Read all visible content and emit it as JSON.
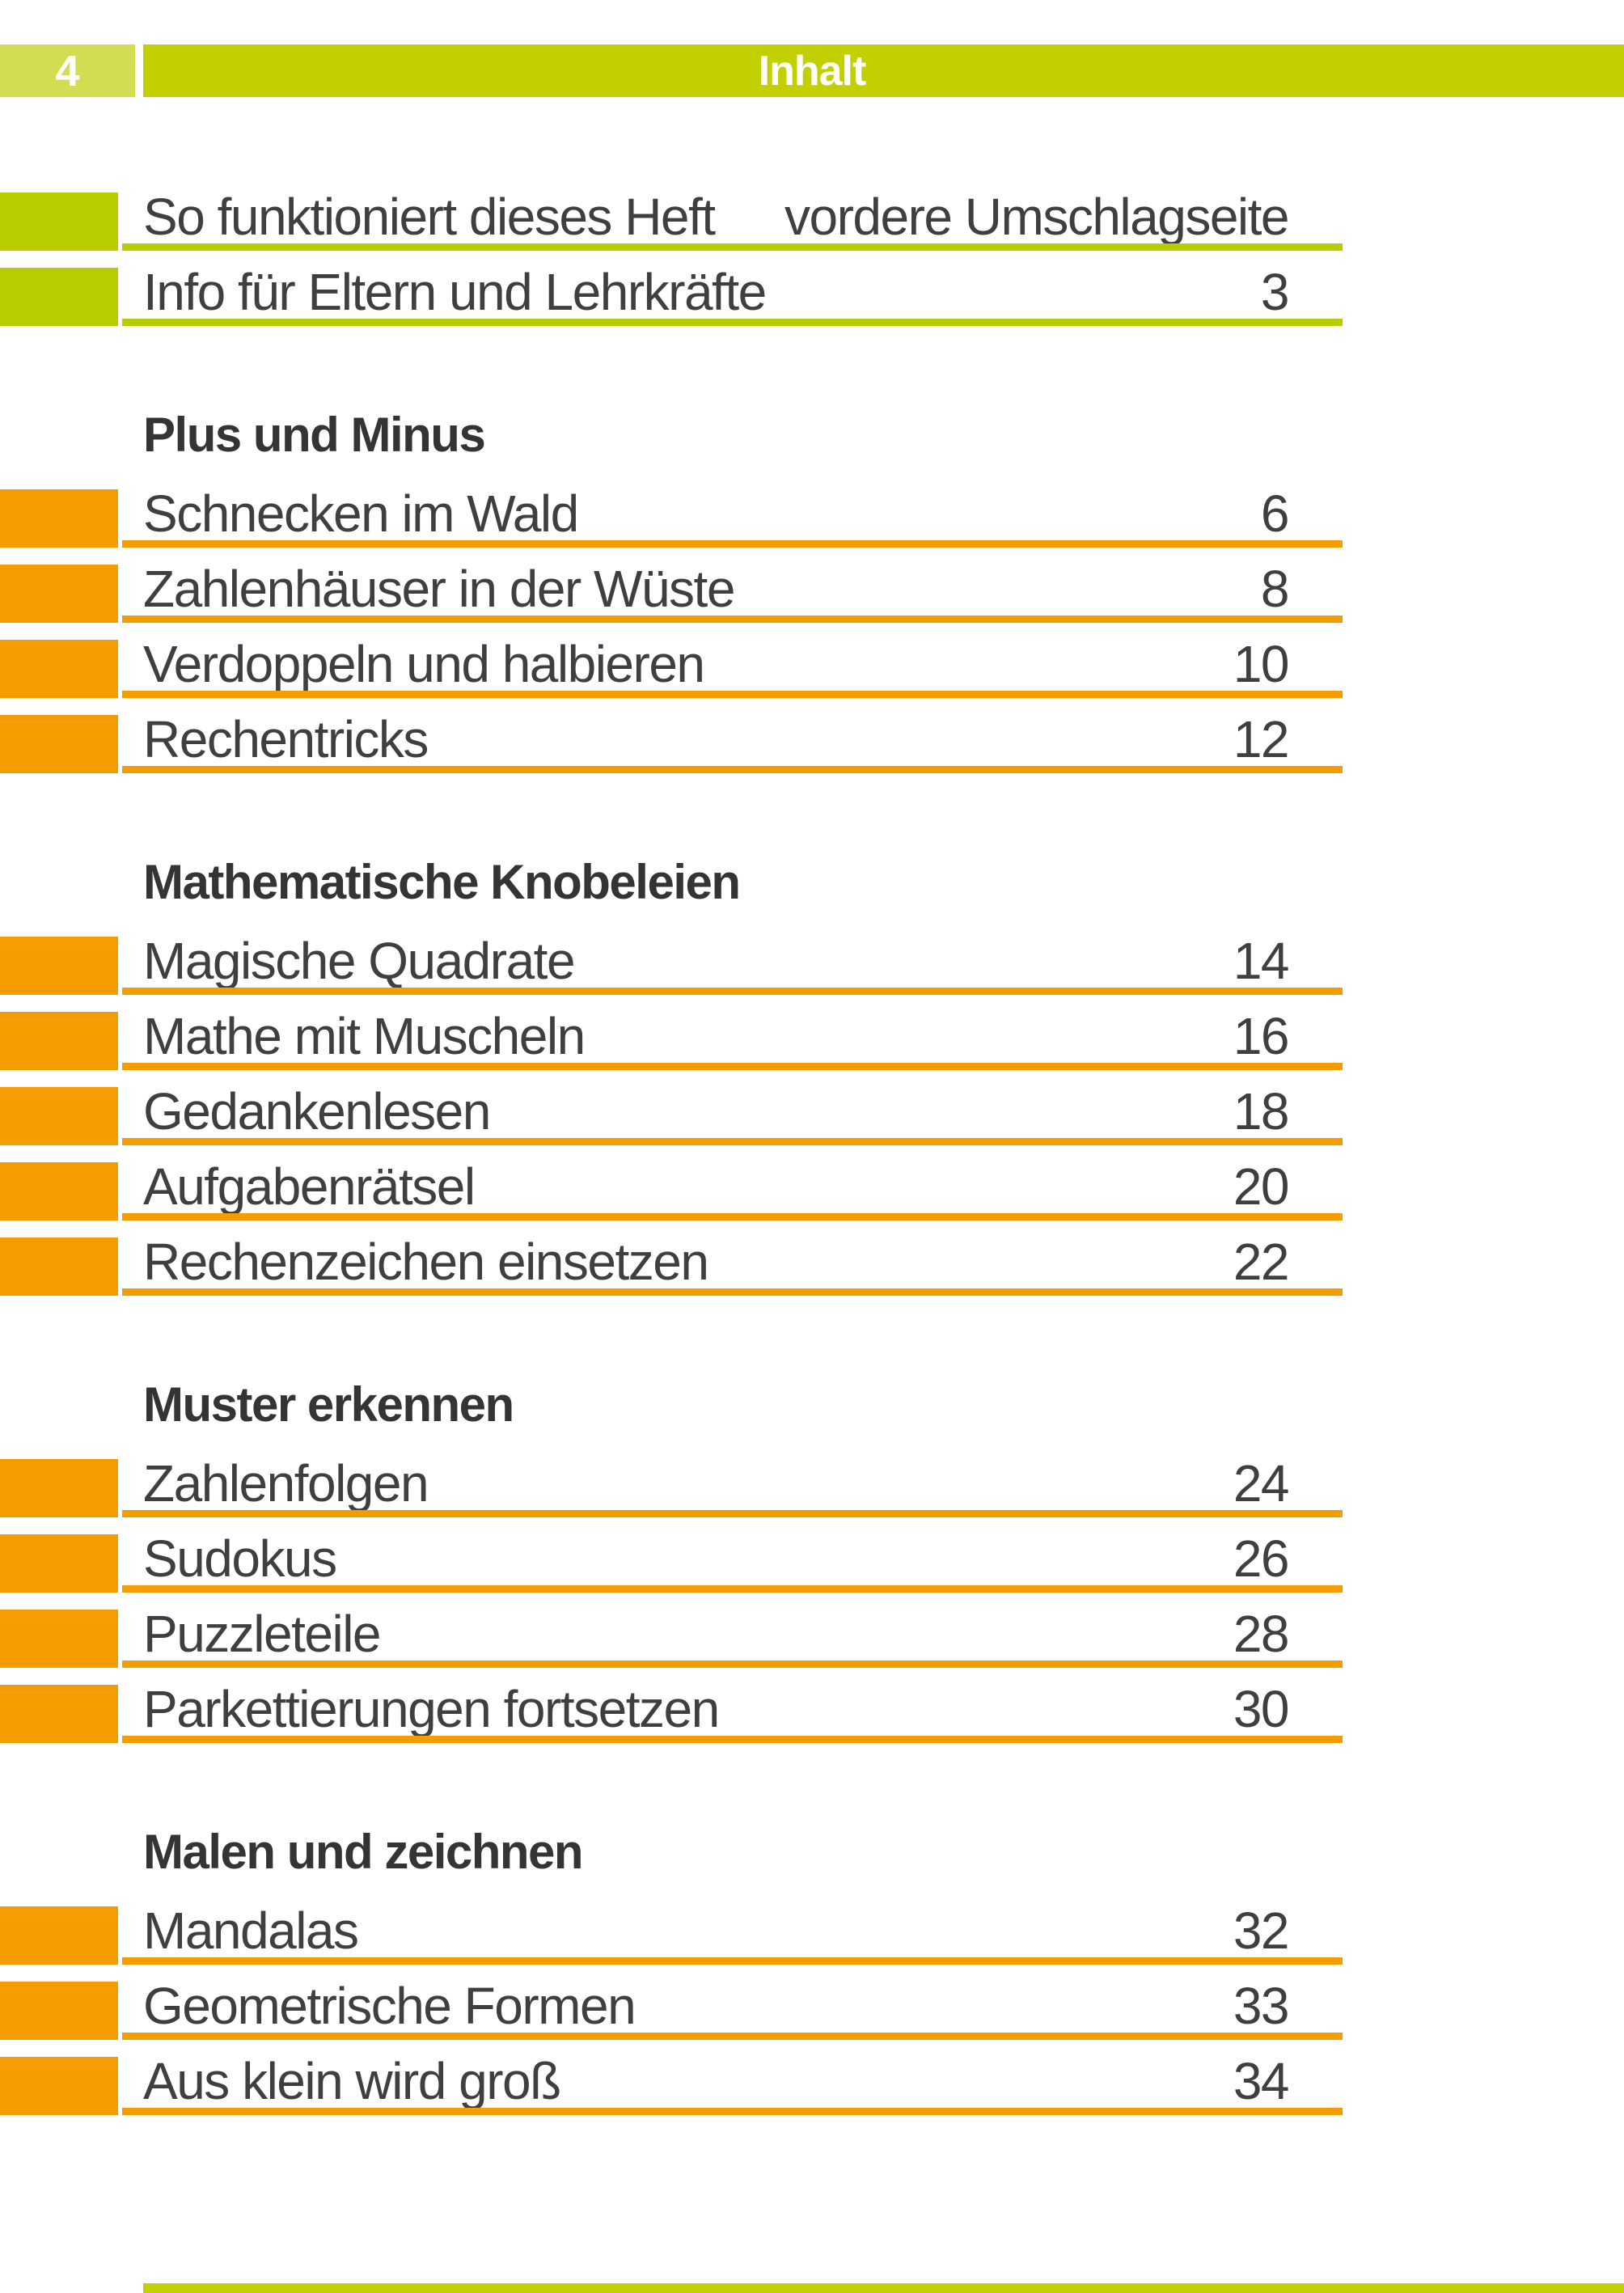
{
  "page": {
    "number": "4",
    "header_title": "Inhalt"
  },
  "colors": {
    "header_bar_green": "#c2d000",
    "page_number_box_green": "#d4dd52",
    "intro_accent_green": "#b8cc00",
    "entry_accent_orange": "#f59c00",
    "body_text": "#3f3f3f",
    "heading_text": "#343434",
    "header_text": "#ffffff"
  },
  "toc": {
    "intro_rows": [
      {
        "title": "So funktioniert dieses Heft",
        "page_ref": "vordere Umschlagseite"
      },
      {
        "title": "Info für Eltern und Lehrkräfte",
        "page_ref": "3"
      }
    ],
    "sections": [
      {
        "heading": "Plus und Minus",
        "rows": [
          {
            "title": "Schnecken im Wald",
            "page_ref": "6"
          },
          {
            "title": "Zahlenhäuser in der Wüste",
            "page_ref": "8"
          },
          {
            "title": "Verdoppeln und halbieren",
            "page_ref": "10"
          },
          {
            "title": "Rechentricks",
            "page_ref": "12"
          }
        ]
      },
      {
        "heading": "Mathematische Knobeleien",
        "rows": [
          {
            "title": "Magische Quadrate",
            "page_ref": "14"
          },
          {
            "title": "Mathe mit Muscheln",
            "page_ref": "16"
          },
          {
            "title": "Gedankenlesen",
            "page_ref": "18"
          },
          {
            "title": "Aufgabenrätsel",
            "page_ref": "20"
          },
          {
            "title": "Rechenzeichen einsetzen",
            "page_ref": "22"
          }
        ]
      },
      {
        "heading": "Muster erkennen",
        "rows": [
          {
            "title": "Zahlenfolgen",
            "page_ref": "24"
          },
          {
            "title": "Sudokus",
            "page_ref": "26"
          },
          {
            "title": "Puzzleteile",
            "page_ref": "28"
          },
          {
            "title": "Parkettierungen fortsetzen",
            "page_ref": "30"
          }
        ]
      },
      {
        "heading": "Malen und zeichnen",
        "rows": [
          {
            "title": "Mandalas",
            "page_ref": "32"
          },
          {
            "title": "Geometrische Formen",
            "page_ref": "33"
          },
          {
            "title": "Aus klein wird groß",
            "page_ref": "34"
          }
        ]
      }
    ]
  }
}
